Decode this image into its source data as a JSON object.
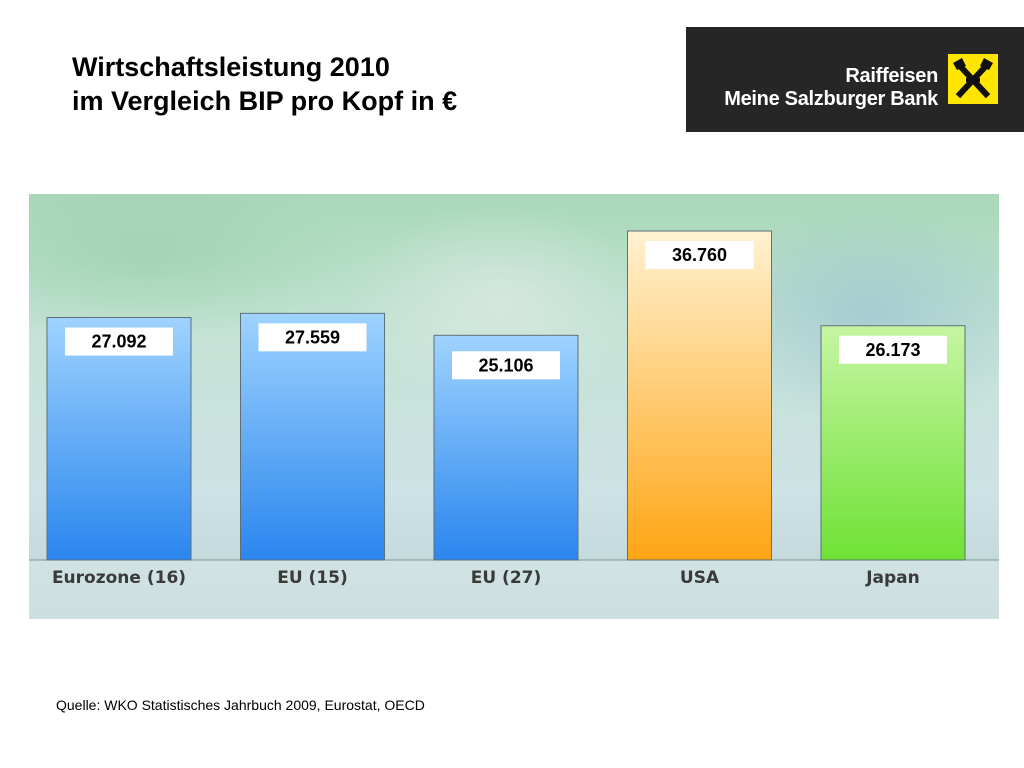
{
  "title": {
    "line1": "Wirtschaftsleistung 2010",
    "line2": "im Vergleich BIP pro Kopf in €"
  },
  "logo": {
    "line1": "Raiffeisen",
    "line2": "Meine Salzburger Bank",
    "emblem_icon": "raiffeisen-gable-cross-icon",
    "background_color": "#262626",
    "emblem_color": "#ffe600"
  },
  "chart_data": {
    "type": "bar",
    "title": "",
    "xlabel": "",
    "ylabel": "",
    "categories": [
      "Eurozone (16)",
      "EU (15)",
      "EU (27)",
      "USA",
      "Japan"
    ],
    "values": [
      27092,
      27559,
      25106,
      36760,
      26173
    ],
    "value_labels": [
      "27.092",
      "27.559",
      "25.106",
      "36.760",
      "26.173"
    ],
    "ylim": [
      0,
      40000
    ],
    "grid": false,
    "legend": "none",
    "bar_colors": [
      [
        "#9fd3ff",
        "#2a86ee"
      ],
      [
        "#9fd3ff",
        "#2a86ee"
      ],
      [
        "#9fd3ff",
        "#2a86ee"
      ],
      [
        "#fff2d2",
        "#ffa514"
      ],
      [
        "#c6f5a3",
        "#6fe235"
      ]
    ]
  },
  "source": "Quelle: WKO Statistisches Jahrbuch 2009, Eurostat, OECD"
}
